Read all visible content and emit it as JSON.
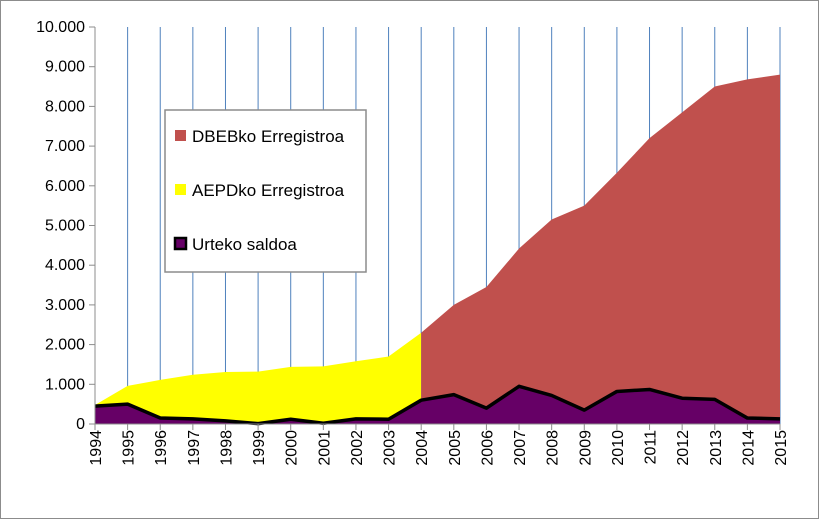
{
  "chart_data": {
    "type": "area",
    "title": "",
    "xlabel": "",
    "ylabel": "",
    "x": [
      1994,
      1995,
      1996,
      1997,
      1998,
      1999,
      2000,
      2001,
      2002,
      2003,
      2004,
      2005,
      2006,
      2007,
      2008,
      2009,
      2010,
      2011,
      2012,
      2013,
      2014,
      2015
    ],
    "x_tick_labels": [
      "1994",
      "1995",
      "1996",
      "1997",
      "1998",
      "1999",
      "2000",
      "2001",
      "2002",
      "2003",
      "2004",
      "2005",
      "2006",
      "2007",
      "2008",
      "2009",
      "2010",
      "2011",
      "2012",
      "2013",
      "2014",
      "2015"
    ],
    "ylim": [
      0,
      10000
    ],
    "y_ticks": [
      0,
      1000,
      2000,
      3000,
      4000,
      5000,
      6000,
      7000,
      8000,
      9000,
      10000
    ],
    "y_tick_labels": [
      "0",
      "1.000",
      "2.000",
      "3.000",
      "4.000",
      "5.000",
      "6.000",
      "7.000",
      "8.000",
      "9.000",
      "10.000"
    ],
    "grid": "vertical",
    "legend_position": "top-left",
    "series": [
      {
        "name": "DBEBko Erregistroa",
        "color": "#c0504d",
        "kind": "area",
        "values": [
          null,
          null,
          null,
          null,
          null,
          null,
          null,
          null,
          null,
          null,
          2300,
          3000,
          3450,
          4420,
          5150,
          5500,
          6330,
          7200,
          7850,
          8500,
          8680,
          8800
        ]
      },
      {
        "name": "AEPDko Erregistroa",
        "color": "#ffff00",
        "kind": "area",
        "values": [
          480,
          960,
          1110,
          1240,
          1310,
          1320,
          1440,
          1450,
          1580,
          1700,
          2300,
          null,
          null,
          null,
          null,
          null,
          null,
          null,
          null,
          null,
          null,
          null
        ]
      },
      {
        "name": "Urteko saldoa",
        "color": "#660066",
        "kind": "area-outlined",
        "values": [
          450,
          500,
          150,
          130,
          80,
          10,
          120,
          20,
          130,
          120,
          600,
          740,
          400,
          950,
          720,
          350,
          820,
          870,
          650,
          620,
          150,
          130
        ]
      }
    ]
  }
}
